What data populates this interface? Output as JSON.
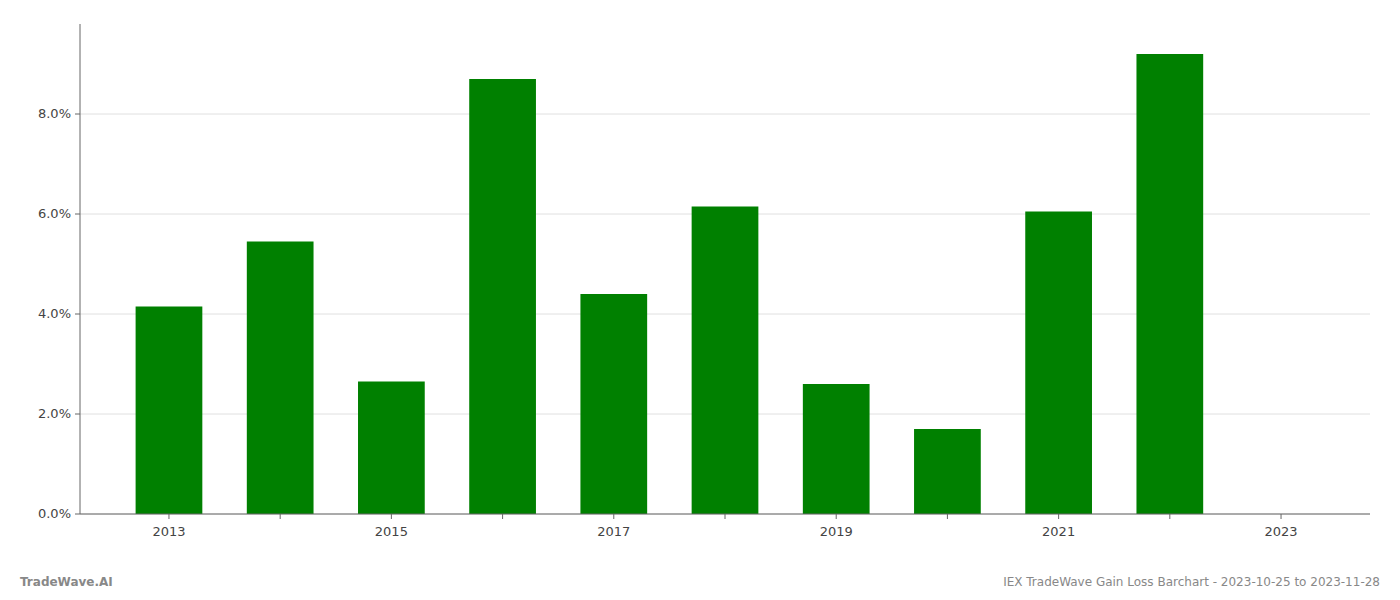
{
  "chart_data": {
    "type": "bar",
    "x": [
      2013,
      2014,
      2015,
      2016,
      2017,
      2018,
      2019,
      2020,
      2021,
      2022
    ],
    "values": [
      0.0415,
      0.0545,
      0.0265,
      0.087,
      0.044,
      0.0615,
      0.026,
      0.017,
      0.0605,
      0.092
    ],
    "color": "#008000",
    "xlim": [
      2012.2,
      2023.8
    ],
    "xticks": [
      2013,
      {
        "value": 2014,
        "label": null
      },
      2015,
      {
        "value": 2016,
        "label": null
      },
      2017,
      {
        "value": 2018,
        "label": null
      },
      2019,
      {
        "value": 2020,
        "label": null
      },
      2021,
      {
        "value": 2022,
        "label": null
      },
      2023
    ],
    "ylim": [
      0,
      0.098
    ],
    "yticks": [
      {
        "value": 0.0,
        "label": "0.0%"
      },
      {
        "value": 0.02,
        "label": "2.0%"
      },
      {
        "value": 0.04,
        "label": "4.0%"
      },
      {
        "value": 0.06,
        "label": "6.0%"
      },
      {
        "value": 0.08,
        "label": "8.0%"
      }
    ],
    "grid": true,
    "annotations": [
      "TradeWave.AI",
      "IEX TradeWave Gain Loss Barchart - 2023-10-25 to 2023-11-28"
    ]
  }
}
